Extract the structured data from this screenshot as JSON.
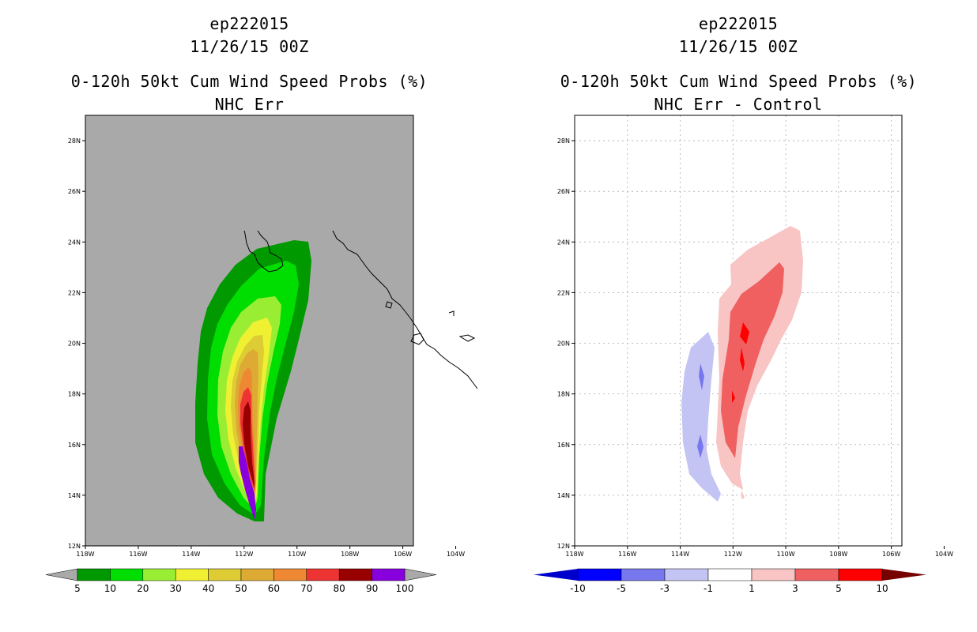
{
  "left_panel": {
    "storm_id": "ep222015",
    "datetime": "11/26/15 00Z",
    "product": "0-120h 50kt Cum Wind Speed Probs (%)",
    "subtitle": "NHC Err",
    "background_color": "#a9a9a9",
    "colorbar": {
      "labels": [
        "5",
        "10",
        "20",
        "30",
        "40",
        "50",
        "60",
        "70",
        "80",
        "90",
        "100"
      ],
      "colors": [
        "#009900",
        "#00dd00",
        "#99ee33",
        "#f0f033",
        "#ddcc33",
        "#ddaa33",
        "#ee8833",
        "#ee3333",
        "#990000",
        "#8800dd"
      ],
      "extend_color": "#a9a9a9"
    }
  },
  "right_panel": {
    "storm_id": "ep222015",
    "datetime": "11/26/15 00Z",
    "product": "0-120h 50kt Cum Wind Speed Probs (%)",
    "subtitle": "NHC Err - Control",
    "background_color": "#ffffff",
    "colorbar": {
      "labels": [
        "-10",
        "-5",
        "-3",
        "-1",
        "1",
        "3",
        "5",
        "10"
      ],
      "colors": [
        "#0000cc",
        "#0000ff",
        "#7777ee",
        "#c4c4f4",
        "#ffffff",
        "#f8c4c4",
        "#f06060",
        "#ff0000",
        "#770000"
      ],
      "extend_low_color": "#0000cc",
      "extend_high_color": "#770000"
    }
  },
  "axes": {
    "lat_labels": [
      "28N",
      "26N",
      "24N",
      "22N",
      "20N",
      "18N",
      "16N",
      "14N",
      "12N"
    ],
    "lon_labels": [
      "118W",
      "116W",
      "114W",
      "112W",
      "110W",
      "108W",
      "106W",
      "104W"
    ],
    "lat_values": [
      28,
      26,
      24,
      22,
      20,
      18,
      16,
      14,
      12
    ],
    "lon_values": [
      -118,
      -116,
      -114,
      -112,
      -110,
      -108,
      -106,
      -104
    ],
    "lat_range": [
      12,
      29
    ],
    "lon_range": [
      -118,
      -105.6
    ]
  }
}
